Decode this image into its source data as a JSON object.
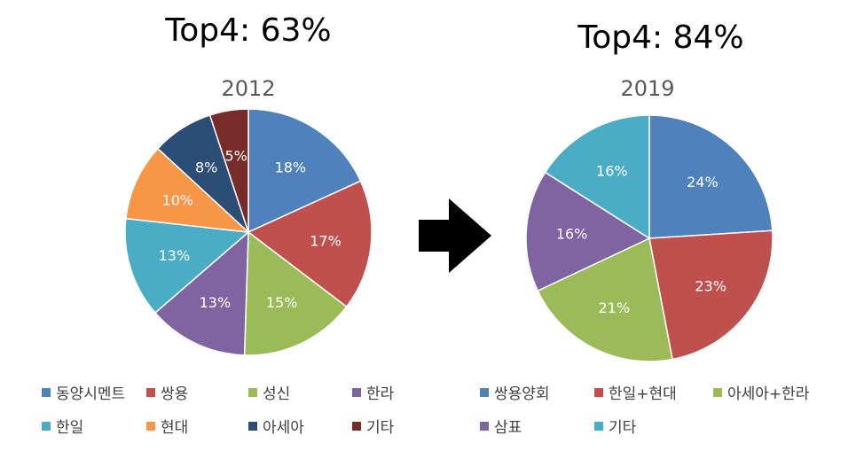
{
  "colors": {
    "blue": "#4F81BD",
    "red": "#C0504D",
    "green": "#9BBB59",
    "purple": "#8064A2",
    "teal": "#4BACC6",
    "orange": "#F79646",
    "navy": "#2C4D75",
    "darkred": "#772C2A"
  },
  "chart_data": [
    {
      "type": "pie",
      "headline": "Top4: 63%",
      "title": "2012",
      "slices": [
        {
          "label": "동양시멘트",
          "value": 18,
          "color": "blue"
        },
        {
          "label": "쌍용",
          "value": 17,
          "color": "red"
        },
        {
          "label": "성신",
          "value": 15,
          "color": "green"
        },
        {
          "label": "한라",
          "value": 13,
          "color": "purple"
        },
        {
          "label": "한일",
          "value": 13,
          "color": "teal"
        },
        {
          "label": "현대",
          "value": 10,
          "color": "orange"
        },
        {
          "label": "아세아",
          "value": 8,
          "color": "navy"
        },
        {
          "label": "기타",
          "value": 5,
          "color": "darkred"
        }
      ]
    },
    {
      "type": "pie",
      "headline": "Top4: 84%",
      "title": "2019",
      "slices": [
        {
          "label": "쌍용양회",
          "value": 24,
          "color": "blue"
        },
        {
          "label": "한일+현대",
          "value": 23,
          "color": "red"
        },
        {
          "label": "아세아+한라",
          "value": 21,
          "color": "green"
        },
        {
          "label": "삼표",
          "value": 16,
          "color": "purple"
        },
        {
          "label": "기타",
          "value": 16,
          "color": "teal"
        }
      ]
    }
  ]
}
